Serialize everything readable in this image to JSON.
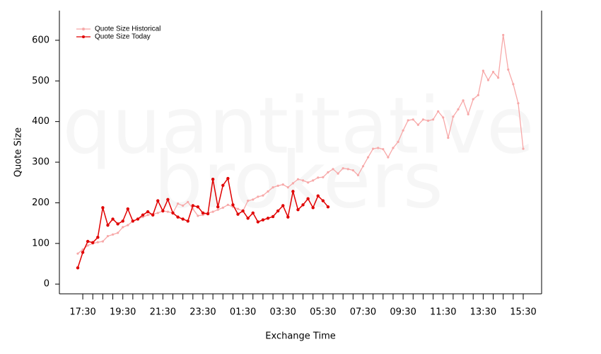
{
  "chart_data": {
    "type": "line",
    "watermark": [
      "quantitative",
      "brokers"
    ],
    "x_label": "Exchange Time",
    "y_label": "Quote Size",
    "categories": [
      null,
      "17:30",
      null,
      null,
      null,
      null,
      null,
      null,
      null,
      "19:30",
      null,
      null,
      null,
      null,
      null,
      null,
      null,
      "21:30",
      null,
      null,
      null,
      null,
      null,
      null,
      null,
      "23:30",
      null,
      null,
      null,
      null,
      null,
      null,
      null,
      "01:30",
      null,
      null,
      null,
      null,
      null,
      null,
      null,
      "03:30",
      null,
      null,
      null,
      null,
      null,
      null,
      null,
      "05:30",
      null,
      null,
      null,
      null,
      null,
      null,
      null,
      "07:30",
      null,
      null,
      null,
      null,
      null,
      null,
      null,
      "09:30",
      null,
      null,
      null,
      null,
      null,
      null,
      null,
      "11:30",
      null,
      null,
      null,
      null,
      null,
      null,
      null,
      "13:30",
      null,
      null,
      null,
      null,
      null,
      null,
      null,
      "15:30"
    ],
    "series": [
      {
        "name": "Quote Size Historical",
        "color": "#f7a8a8",
        "values": [
          75,
          85,
          95,
          100,
          103,
          105,
          118,
          122,
          126,
          140,
          145,
          155,
          160,
          165,
          170,
          172,
          175,
          180,
          178,
          175,
          198,
          193,
          202,
          185,
          168,
          170,
          175,
          178,
          183,
          188,
          195,
          190,
          185,
          180,
          205,
          208,
          215,
          218,
          228,
          238,
          242,
          245,
          238,
          248,
          258,
          255,
          250,
          255,
          262,
          263,
          275,
          283,
          272,
          285,
          283,
          280,
          268,
          290,
          312,
          333,
          335,
          332,
          312,
          335,
          350,
          378,
          403,
          405,
          392,
          405,
          402,
          405,
          425,
          410,
          360,
          412,
          430,
          452,
          418,
          455,
          465,
          525,
          502,
          522,
          508,
          613,
          528,
          492,
          445,
          333
        ]
      },
      {
        "name": "Quote Size Today",
        "color": "#e00000",
        "values": [
          40,
          78,
          105,
          102,
          115,
          188,
          145,
          160,
          148,
          155,
          185,
          155,
          160,
          170,
          178,
          170,
          205,
          180,
          208,
          175,
          165,
          160,
          155,
          193,
          190,
          175,
          173,
          258,
          190,
          243,
          260,
          195,
          172,
          180,
          162,
          175,
          153,
          158,
          162,
          166,
          180,
          193,
          165,
          228,
          183,
          195,
          210,
          188,
          217,
          205,
          190,
          null,
          null,
          null,
          null,
          null,
          null,
          null,
          null,
          null,
          null,
          null,
          null,
          null,
          null,
          null,
          null,
          null,
          null,
          null,
          null,
          null,
          null,
          null,
          null,
          null,
          null,
          null,
          null,
          null,
          null,
          null,
          null,
          null,
          null,
          null,
          null,
          null,
          null,
          null
        ]
      }
    ],
    "ylim": [
      -24,
      673
    ],
    "yticks": [
      0,
      100,
      200,
      300,
      400,
      500,
      600
    ],
    "legend": "top-left"
  }
}
